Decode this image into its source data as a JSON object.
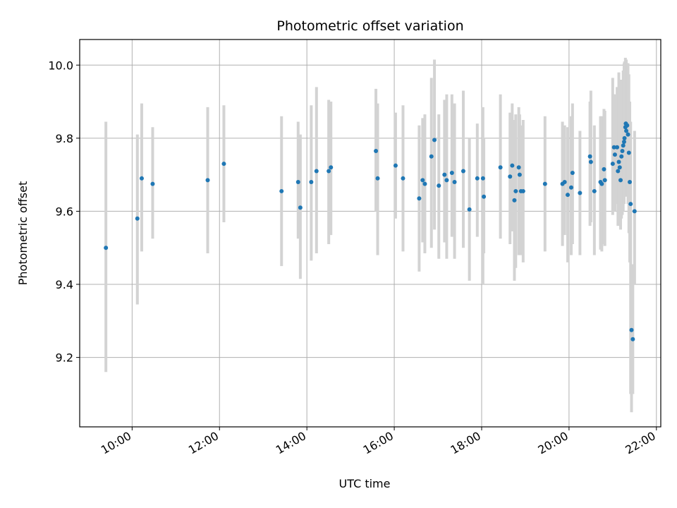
{
  "chart_data": {
    "type": "scatter",
    "title": "Photometric offset variation",
    "xlabel": "UTC time",
    "ylabel": "Photometric offset",
    "x_ticks": [
      "10:00",
      "12:00",
      "14:00",
      "16:00",
      "18:00",
      "20:00",
      "22:00"
    ],
    "x_tick_hours": [
      10,
      12,
      14,
      16,
      18,
      20,
      22
    ],
    "y_ticks": [
      "9.2",
      "9.4",
      "9.6",
      "9.8",
      "10.0"
    ],
    "y_tick_values": [
      9.2,
      9.4,
      9.6,
      9.8,
      10.0
    ],
    "xlim_hours": [
      8.8,
      22.1
    ],
    "ylim": [
      9.01,
      10.07
    ],
    "grid": true,
    "colors": {
      "points": "#1f77b4",
      "errorbars": "#d3d3d3",
      "grid": "#b0b0b0"
    },
    "series": [
      {
        "x_hours": [
          9.4,
          10.12,
          10.22,
          10.47,
          11.73,
          12.1,
          13.42,
          13.8,
          13.85,
          14.1,
          14.22,
          14.5,
          14.55,
          15.58,
          15.62,
          16.03,
          16.2,
          16.57,
          16.65,
          16.7,
          16.85,
          16.92,
          17.02,
          17.15,
          17.2,
          17.32,
          17.38,
          17.58,
          17.72,
          17.9,
          18.03,
          18.05,
          18.43,
          18.65,
          18.7,
          18.75,
          18.78,
          18.85,
          18.87,
          18.9,
          18.95,
          19.45,
          19.85,
          19.9,
          19.97,
          20.05,
          20.08,
          20.25,
          20.48,
          20.5,
          20.58,
          20.72,
          20.75,
          20.8,
          20.82,
          21.0,
          21.03,
          21.05,
          21.1,
          21.12,
          21.14,
          21.16,
          21.18,
          21.2,
          21.22,
          21.24,
          21.26,
          21.27,
          21.29,
          21.3,
          21.31,
          21.33,
          21.35,
          21.37,
          21.39,
          21.41,
          21.43,
          21.46,
          21.5
        ],
        "y": [
          9.5,
          9.58,
          9.69,
          9.675,
          9.685,
          9.73,
          9.655,
          9.68,
          9.61,
          9.68,
          9.71,
          9.71,
          9.72,
          9.765,
          9.69,
          9.725,
          9.69,
          9.635,
          9.685,
          9.675,
          9.75,
          9.795,
          9.67,
          9.7,
          9.685,
          9.705,
          9.68,
          9.71,
          9.605,
          9.69,
          9.69,
          9.64,
          9.72,
          9.695,
          9.725,
          9.63,
          9.655,
          9.72,
          9.7,
          9.655,
          9.655,
          9.675,
          9.675,
          9.68,
          9.645,
          9.665,
          9.705,
          9.65,
          9.75,
          9.735,
          9.655,
          9.68,
          9.675,
          9.715,
          9.685,
          9.73,
          9.775,
          9.755,
          9.775,
          9.71,
          9.735,
          9.72,
          9.685,
          9.75,
          9.765,
          9.78,
          9.79,
          9.8,
          9.83,
          9.84,
          9.82,
          9.835,
          9.81,
          9.76,
          9.68,
          9.62,
          9.275,
          9.25,
          9.6
        ],
        "err_low": [
          9.16,
          9.345,
          9.49,
          9.525,
          9.485,
          9.57,
          9.45,
          9.525,
          9.415,
          9.465,
          9.485,
          9.51,
          9.535,
          9.6,
          9.48,
          9.58,
          9.49,
          9.435,
          9.515,
          9.485,
          9.5,
          9.55,
          9.47,
          9.515,
          9.47,
          9.53,
          9.47,
          9.5,
          9.41,
          9.53,
          9.4,
          9.485,
          9.525,
          9.51,
          9.545,
          9.41,
          9.445,
          9.48,
          9.545,
          9.48,
          9.46,
          9.49,
          9.505,
          9.535,
          9.46,
          9.48,
          9.51,
          9.48,
          9.56,
          9.57,
          9.48,
          9.495,
          9.49,
          9.51,
          9.505,
          9.59,
          9.6,
          9.6,
          9.62,
          9.56,
          9.565,
          9.57,
          9.55,
          9.58,
          9.59,
          9.6,
          9.62,
          9.64,
          9.65,
          9.67,
          9.64,
          9.66,
          9.62,
          9.54,
          9.46,
          9.1,
          9.05,
          9.1,
          9.4
        ],
        "err_high": [
          9.845,
          9.81,
          9.895,
          9.83,
          9.885,
          9.89,
          9.86,
          9.845,
          9.81,
          9.89,
          9.94,
          9.905,
          9.9,
          9.935,
          9.895,
          9.87,
          9.89,
          9.835,
          9.855,
          9.865,
          9.965,
          10.015,
          9.865,
          9.905,
          9.92,
          9.92,
          9.895,
          9.93,
          9.8,
          9.84,
          9.885,
          9.8,
          9.92,
          9.87,
          9.895,
          9.85,
          9.865,
          9.885,
          9.865,
          9.835,
          9.85,
          9.86,
          9.845,
          9.835,
          9.83,
          9.86,
          9.895,
          9.82,
          9.9,
          9.93,
          9.835,
          9.86,
          9.86,
          9.88,
          9.875,
          9.965,
          9.92,
          9.92,
          9.94,
          9.905,
          9.98,
          9.96,
          9.92,
          9.945,
          9.96,
          9.985,
          10.005,
          10.01,
          10.02,
          10.015,
          10.015,
          10.005,
          10.005,
          9.975,
          9.9,
          9.845,
          9.455,
          9.455,
          9.82
        ]
      }
    ]
  }
}
